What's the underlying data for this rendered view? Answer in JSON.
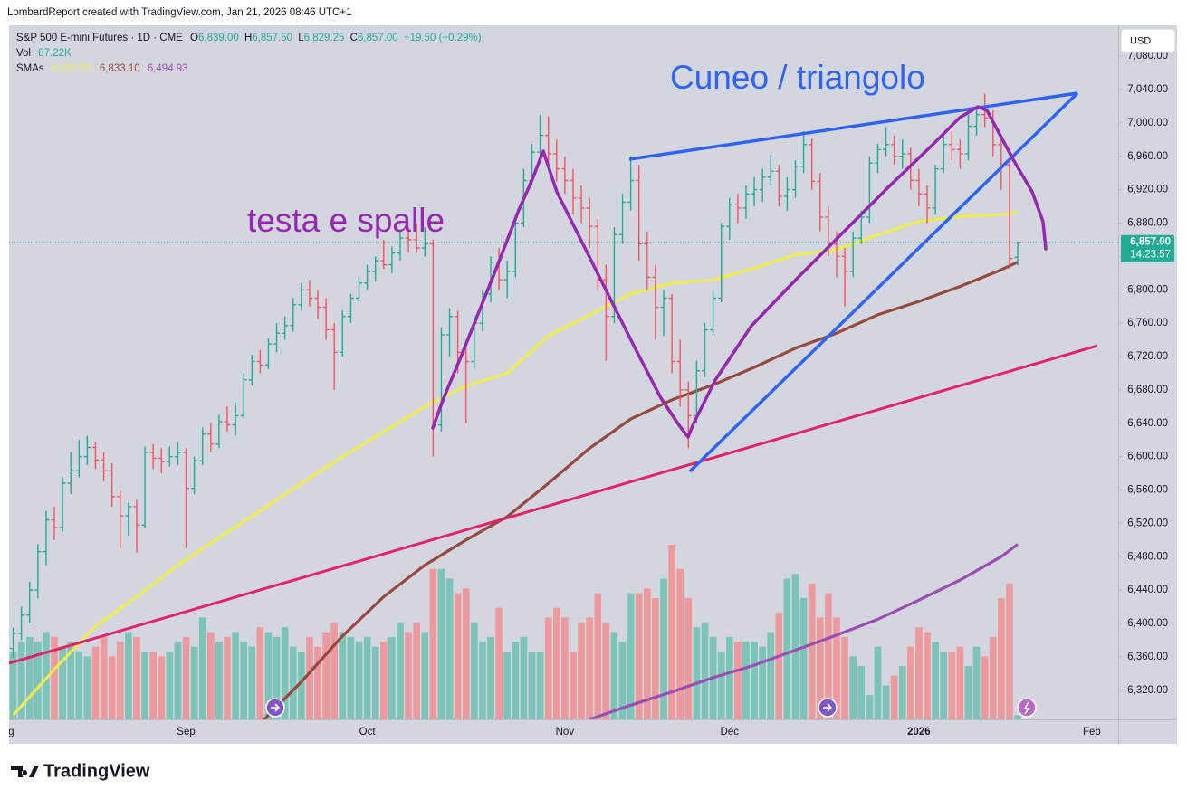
{
  "header": {
    "attribution": "LombardReport created with TradingView.com, Jan 21, 2026 08:46 UTC+1"
  },
  "footer": {
    "brand": "TradingView"
  },
  "chart_data": {
    "type": "ohlc",
    "legend": {
      "symbol": "S&P 500 E-mini Futures · 1D · CME",
      "o": "O",
      "o_value": "6,839.00",
      "h": "H",
      "h_value": "6,857.50",
      "l": "L",
      "l_value": "6,829.25",
      "c": "C",
      "c_value": "6,857.00",
      "change": "+19.50 (+0.29%)"
    },
    "currency": "USD",
    "last_price_label": "6,857.00",
    "countdown": "14:23:57",
    "annotations": [
      "testa e spalle",
      "Cuneo / triangolo"
    ],
    "up_color": "#22ab94",
    "down_color": "#f7525f",
    "volume_up_color": "#7cc3b8",
    "volume_down_color": "#ec9a9d",
    "xlim": [
      -0.5,
      134.2
    ],
    "xticks": [
      {
        "value": -1,
        "label": "Aug"
      },
      {
        "value": 21,
        "label": "Sep"
      },
      {
        "value": 43,
        "label": "Oct"
      },
      {
        "value": 67,
        "label": "Nov"
      },
      {
        "value": 87,
        "label": "Dec"
      },
      {
        "value": 110,
        "label": "2026"
      },
      {
        "value": 131,
        "label": "Feb"
      }
    ],
    "ylim": [
      6285,
      7117
    ],
    "yticks": [
      {
        "value": 6320,
        "label": "6,320.00"
      },
      {
        "value": 6360,
        "label": "6,360.00"
      },
      {
        "value": 6400,
        "label": "6,400.00"
      },
      {
        "value": 6440,
        "label": "6,440.00"
      },
      {
        "value": 6480,
        "label": "6,480.00"
      },
      {
        "value": 6520,
        "label": "6,520.00"
      },
      {
        "value": 6560,
        "label": "6,560.00"
      },
      {
        "value": 6600,
        "label": "6,600.00"
      },
      {
        "value": 6640,
        "label": "6,640.00"
      },
      {
        "value": 6680,
        "label": "6,680.00"
      },
      {
        "value": 6720,
        "label": "6,720.00"
      },
      {
        "value": 6760,
        "label": "6,760.00"
      },
      {
        "value": 6800,
        "label": "6,800.00"
      },
      {
        "value": 6840,
        "label": "6,840.00"
      },
      {
        "value": 6880,
        "label": "6,880.00"
      },
      {
        "value": 6920,
        "label": "6,920.00"
      },
      {
        "value": 6960,
        "label": "6,960.00"
      },
      {
        "value": 7000,
        "label": "7,000.00"
      },
      {
        "value": 7040,
        "label": "7,040.00"
      },
      {
        "value": 7080,
        "label": "7,080.00"
      }
    ],
    "open": [
      6370,
      6388,
      6410,
      6440,
      6486,
      6524,
      6515,
      6568,
      6583,
      6600,
      6611,
      6596,
      6583,
      6552,
      6529,
      6540,
      6518,
      6605,
      6598,
      6594,
      6600,
      6605,
      6562,
      6595,
      6627,
      6615,
      6642,
      6638,
      6649,
      6692,
      6714,
      6710,
      6735,
      6748,
      6757,
      6782,
      6800,
      6790,
      6779,
      6752,
      6725,
      6768,
      6790,
      6808,
      6822,
      6835,
      6830,
      6844,
      6862,
      6860,
      6850,
      6855,
      6638,
      6746,
      6768,
      6725,
      6714,
      6760,
      6795,
      6833,
      6812,
      6822,
      6880,
      6931,
      6965,
      6985,
      6963,
      6945,
      6931,
      6910,
      6898,
      6876,
      6812,
      6768,
      6866,
      6905,
      6931,
      6855,
      6815,
      6779,
      6790,
      6714,
      6680,
      6649,
      6703,
      6752,
      6790,
      6876,
      6902,
      6898,
      6915,
      6920,
      6935,
      6942,
      6912,
      6920,
      6948,
      6974,
      6930,
      6887,
      6855,
      6840,
      6822,
      6862,
      6887,
      6952,
      6968,
      6974,
      6960,
      6963,
      6931,
      6915,
      6898,
      6945,
      6974,
      6968,
      6963,
      6996,
      7010,
      7006,
      6974,
      6950,
      6839
    ],
    "high": [
      6395,
      6420,
      6450,
      6495,
      6535,
      6540,
      6575,
      6605,
      6620,
      6625,
      6618,
      6605,
      6592,
      6560,
      6545,
      6548,
      6612,
      6615,
      6610,
      6612,
      6618,
      6610,
      6600,
      6635,
      6640,
      6650,
      6660,
      6665,
      6700,
      6722,
      6728,
      6742,
      6760,
      6768,
      6790,
      6808,
      6812,
      6800,
      6790,
      6760,
      6775,
      6795,
      6815,
      6830,
      6840,
      6860,
      6852,
      6870,
      6875,
      6880,
      6875,
      6860,
      6755,
      6778,
      6775,
      6740,
      6770,
      6800,
      6840,
      6850,
      6835,
      6890,
      6945,
      6975,
      7010,
      7008,
      6980,
      6960,
      6945,
      6925,
      6910,
      6885,
      6830,
      6875,
      6915,
      6960,
      6950,
      6870,
      6830,
      6800,
      6795,
      6740,
      6690,
      6715,
      6760,
      6800,
      6880,
      6910,
      6915,
      6925,
      6935,
      6945,
      6962,
      6950,
      6935,
      6955,
      6990,
      6982,
      6940,
      6900,
      6870,
      6850,
      6870,
      6895,
      6960,
      6975,
      6995,
      6985,
      6980,
      6970,
      6945,
      6925,
      6950,
      6985,
      6990,
      6980,
      7010,
      7020,
      7035,
      7015,
      6985,
      6955,
      6857.5
    ],
    "low": [
      6360,
      6380,
      6400,
      6430,
      6470,
      6500,
      6510,
      6555,
      6575,
      6590,
      6585,
      6570,
      6540,
      6490,
      6505,
      6485,
      6515,
      6585,
      6580,
      6588,
      6590,
      6490,
      6555,
      6590,
      6605,
      6610,
      6630,
      6625,
      6645,
      6685,
      6700,
      6705,
      6725,
      6740,
      6750,
      6775,
      6780,
      6765,
      6740,
      6680,
      6720,
      6760,
      6785,
      6800,
      6810,
      6825,
      6820,
      6835,
      6845,
      6845,
      6840,
      6600,
      6630,
      6720,
      6700,
      6640,
      6705,
      6750,
      6785,
      6800,
      6790,
      6815,
      6875,
      6925,
      6955,
      6950,
      6930,
      6915,
      6890,
      6880,
      6850,
      6800,
      6715,
      6760,
      6855,
      6895,
      6835,
      6800,
      6740,
      6745,
      6700,
      6660,
      6610,
      6640,
      6695,
      6745,
      6785,
      6860,
      6880,
      6885,
      6900,
      6905,
      6925,
      6900,
      6895,
      6910,
      6940,
      6920,
      6870,
      6840,
      6815,
      6780,
      6815,
      6855,
      6880,
      6940,
      6960,
      6950,
      6945,
      6920,
      6900,
      6880,
      6890,
      6940,
      6955,
      6945,
      6955,
      6985,
      6995,
      6960,
      6920,
      6825,
      6829.25
    ],
    "close": [
      6388,
      6410,
      6440,
      6486,
      6524,
      6515,
      6568,
      6583,
      6600,
      6611,
      6596,
      6583,
      6552,
      6529,
      6540,
      6518,
      6605,
      6598,
      6594,
      6600,
      6605,
      6562,
      6595,
      6627,
      6615,
      6642,
      6638,
      6649,
      6692,
      6714,
      6710,
      6735,
      6748,
      6757,
      6782,
      6800,
      6790,
      6779,
      6752,
      6725,
      6768,
      6790,
      6808,
      6822,
      6835,
      6830,
      6844,
      6862,
      6860,
      6850,
      6855,
      6638,
      6746,
      6768,
      6725,
      6714,
      6760,
      6795,
      6833,
      6812,
      6822,
      6880,
      6931,
      6965,
      6985,
      6963,
      6945,
      6931,
      6910,
      6898,
      6876,
      6812,
      6768,
      6866,
      6905,
      6931,
      6855,
      6815,
      6779,
      6790,
      6714,
      6680,
      6649,
      6703,
      6752,
      6790,
      6876,
      6902,
      6898,
      6915,
      6920,
      6935,
      6942,
      6912,
      6920,
      6948,
      6974,
      6930,
      6887,
      6855,
      6840,
      6822,
      6862,
      6887,
      6952,
      6968,
      6974,
      6960,
      6963,
      6931,
      6915,
      6898,
      6945,
      6974,
      6968,
      6963,
      6996,
      7010,
      7006,
      6974,
      6950,
      6837.5,
      6857
    ],
    "volume": {
      "label": "Vol",
      "value_label": "87.22K",
      "values": [
        1400,
        1600,
        1700,
        1600,
        1800,
        1700,
        1500,
        1600,
        1400,
        1300,
        1500,
        1700,
        1300,
        1600,
        1800,
        1700,
        1400,
        1400,
        1300,
        1400,
        1600,
        1700,
        1500,
        2100,
        1800,
        1600,
        1700,
        1800,
        1600,
        1500,
        1900,
        1800,
        1700,
        1900,
        1500,
        1400,
        1700,
        1500,
        1800,
        2000,
        1800,
        1700,
        1600,
        1700,
        1500,
        1600,
        1700,
        2000,
        1800,
        2000,
        1800,
        3100,
        3100,
        2900,
        2600,
        2700,
        2000,
        1600,
        1700,
        2300,
        1400,
        1600,
        1700,
        1400,
        1400,
        2100,
        2300,
        2100,
        1400,
        2000,
        2100,
        2600,
        2000,
        1800,
        1600,
        2600,
        2600,
        2700,
        2500,
        2900,
        3600,
        3100,
        2500,
        1900,
        2000,
        1700,
        1400,
        1700,
        1600,
        1600,
        1600,
        1500,
        1800,
        2200,
        2900,
        3000,
        2500,
        2800,
        2100,
        2600,
        2100,
        1700,
        1300,
        1100,
        500,
        1500,
        700,
        900,
        1100,
        1500,
        1900,
        1800,
        1600,
        1400,
        1400,
        1500,
        1100,
        1500,
        1300,
        1700,
        2500,
        2800,
        87.22
      ]
    },
    "smas": {
      "label": "SMAs",
      "lines": [
        {
          "color": "#eeea4f",
          "value_label": "6,892.87",
          "x": [
            0,
            5,
            10,
            15,
            20,
            25,
            30,
            35,
            40,
            45,
            50,
            55,
            60,
            65,
            70,
            75,
            80,
            85,
            90,
            95,
            100,
            105,
            110,
            115,
            120,
            122
          ],
          "values": [
            6290,
            6345,
            6397,
            6432,
            6470,
            6503,
            6535,
            6568,
            6600,
            6630,
            6660,
            6685,
            6700,
            6745,
            6770,
            6795,
            6808,
            6812,
            6826,
            6842,
            6848,
            6866,
            6882,
            6888,
            6890,
            6892.87
          ]
        },
        {
          "color": "#96493f",
          "value_label": "6,833.10",
          "x": [
            30,
            35,
            40,
            45,
            50,
            55,
            60,
            65,
            70,
            75,
            80,
            85,
            90,
            95,
            100,
            105,
            110,
            115,
            120,
            122
          ],
          "values": [
            6280,
            6330,
            6385,
            6432,
            6470,
            6500,
            6528,
            6568,
            6610,
            6645,
            6668,
            6686,
            6707,
            6730,
            6748,
            6770,
            6786,
            6804,
            6824,
            6833.1
          ]
        },
        {
          "color": "#9a4fb0",
          "value_label": "6,494.93",
          "x": [
            70,
            75,
            80,
            85,
            90,
            95,
            100,
            105,
            110,
            115,
            120,
            122
          ],
          "values": [
            6285,
            6302,
            6318,
            6335,
            6350,
            6368,
            6386,
            6405,
            6428,
            6452,
            6480,
            6494.93
          ]
        }
      ]
    }
  }
}
